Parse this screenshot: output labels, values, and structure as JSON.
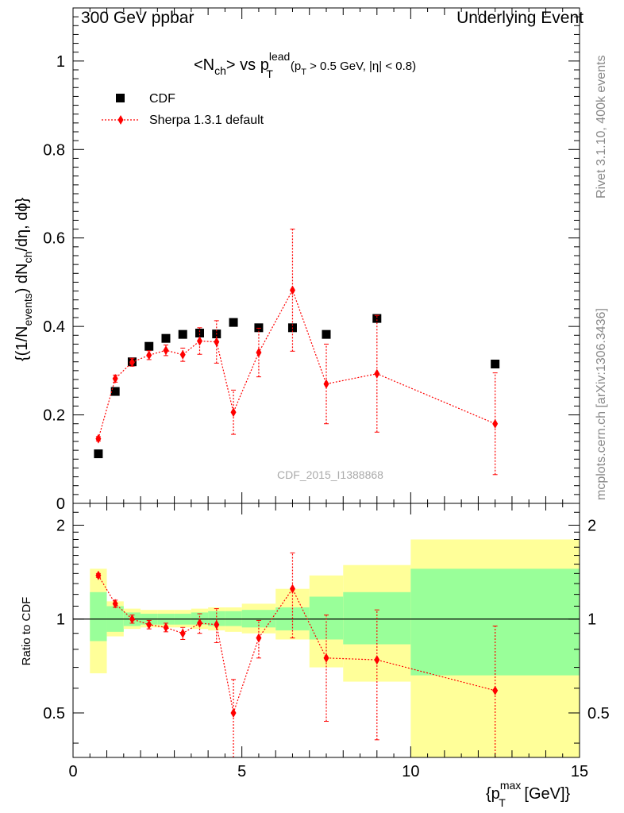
{
  "header": {
    "left": "300 GeV ppbar",
    "right": "Underlying Event"
  },
  "side_labels": {
    "rivet": "Rivet 3.1.10,  400k events",
    "mcplots": "mcplots.cern.ch [arXiv:1306.3436]"
  },
  "plot_title": {
    "main": "<N",
    "sub1": "ch",
    "mid": "> vs p",
    "sup": "lead",
    "sub2": "T",
    "cut1": "(p",
    "cut_sub": "T",
    "cut2": " > 0.5 GeV, |η| < 0.8)"
  },
  "watermark": "CDF_2015_I1388868",
  "legend": [
    {
      "label": "CDF",
      "marker": "square",
      "color": "#000000"
    },
    {
      "label": "Sherpa 1.3.1 default",
      "marker": "diamond",
      "color": "#ff0000"
    }
  ],
  "y_axis_main_label": "{(1/N_events) dN_ch/dη, dϕ}",
  "y_axis_main_parts": {
    "a": "{(1/N",
    "b": "events",
    "c": ") dN",
    "d": "ch",
    "e": "/dη, dϕ}"
  },
  "y_axis_ratio_label": "Ratio to CDF",
  "x_axis_label": {
    "a": "{p",
    "sup": "max",
    "sub": "T",
    "b": " [GeV]}"
  },
  "chart_data": [
    {
      "type": "scatter",
      "panel": "main",
      "xlim": [
        0,
        15
      ],
      "ylim": [
        0,
        1.12
      ],
      "yticks": [
        0.2,
        0.4,
        0.6,
        0.8,
        1
      ],
      "ytick_labels": [
        "0.2",
        "0.4",
        "0.6",
        "0.8",
        "1"
      ],
      "series": [
        {
          "name": "CDF",
          "color": "#000000",
          "x": [
            0.75,
            1.25,
            1.75,
            2.25,
            2.75,
            3.25,
            3.75,
            4.25,
            4.75,
            5.5,
            6.5,
            7.5,
            9.0,
            12.5
          ],
          "y": [
            0.112,
            0.253,
            0.32,
            0.355,
            0.373,
            0.382,
            0.385,
            0.383,
            0.409,
            0.397,
            0.397,
            0.382,
            0.418,
            0.315
          ]
        },
        {
          "name": "Sherpa 1.3.1 default",
          "color": "#ff0000",
          "x": [
            0.75,
            1.25,
            1.75,
            2.25,
            2.75,
            3.25,
            3.75,
            4.25,
            4.75,
            5.5,
            6.5,
            7.5,
            9.0,
            12.5
          ],
          "y": [
            0.146,
            0.282,
            0.319,
            0.335,
            0.346,
            0.336,
            0.367,
            0.365,
            0.206,
            0.341,
            0.482,
            0.27,
            0.293,
            0.18
          ],
          "yerr": [
            0.005,
            0.008,
            0.009,
            0.01,
            0.012,
            0.015,
            0.03,
            0.048,
            0.05,
            0.055,
            0.138,
            0.09,
            0.132,
            0.115
          ]
        }
      ]
    },
    {
      "type": "scatter",
      "panel": "ratio",
      "ylabel": "Ratio to CDF",
      "xlim": [
        0,
        15
      ],
      "ylim": [
        0.36,
        2.35
      ],
      "yscale": "log",
      "yticks": [
        0.5,
        1,
        2
      ],
      "ytick_labels": [
        "0.5",
        "1",
        "2"
      ],
      "xticks": [
        0,
        5,
        10,
        15
      ],
      "xtick_labels": [
        "0",
        "5",
        "10",
        "15"
      ],
      "reference_line": 1,
      "bands": {
        "bin_edges": [
          0.5,
          1.0,
          1.5,
          2.0,
          2.5,
          3.0,
          3.5,
          4.0,
          4.5,
          5.0,
          6.0,
          7.0,
          8.0,
          10.0,
          15.0
        ],
        "inner_color": "#99ff99",
        "outer_color": "#ffff99",
        "inner_low": [
          0.85,
          0.91,
          0.95,
          0.96,
          0.96,
          0.96,
          0.96,
          0.95,
          0.95,
          0.94,
          0.92,
          0.86,
          0.83,
          0.66
        ],
        "inner_high": [
          1.22,
          1.1,
          1.05,
          1.04,
          1.04,
          1.04,
          1.05,
          1.06,
          1.06,
          1.07,
          1.09,
          1.18,
          1.22,
          1.45
        ],
        "outer_low": [
          0.67,
          0.88,
          0.93,
          0.94,
          0.94,
          0.94,
          0.93,
          0.92,
          0.91,
          0.9,
          0.86,
          0.7,
          0.63,
          0.35
        ],
        "outer_high": [
          1.45,
          1.14,
          1.08,
          1.07,
          1.07,
          1.07,
          1.08,
          1.09,
          1.09,
          1.12,
          1.25,
          1.38,
          1.49,
          1.8
        ]
      },
      "series": [
        {
          "name": "Sherpa 1.3.1 default",
          "color": "#ff0000",
          "x": [
            0.75,
            1.25,
            1.75,
            2.25,
            2.75,
            3.25,
            3.75,
            4.25,
            4.75,
            5.5,
            6.5,
            7.5,
            9.0,
            12.5
          ],
          "y": [
            1.38,
            1.12,
            1.0,
            0.96,
            0.94,
            0.9,
            0.97,
            0.96,
            0.5,
            0.87,
            1.25,
            0.75,
            0.74,
            0.59
          ],
          "yerr": [
            0.02,
            0.03,
            0.03,
            0.03,
            0.03,
            0.04,
            0.07,
            0.12,
            0.14,
            0.12,
            0.38,
            0.28,
            0.33,
            0.36
          ]
        }
      ]
    }
  ]
}
